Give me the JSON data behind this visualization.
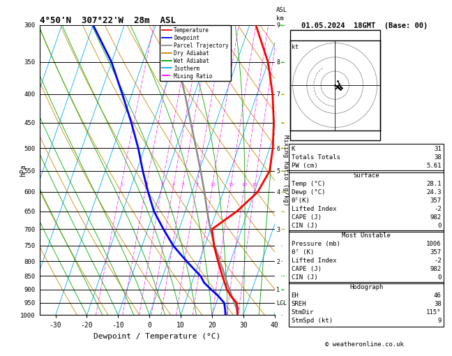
{
  "title_left": "4°50'N  307°22'W  28m  ASL",
  "title_right": "01.05.2024  18GMT  (Base: 00)",
  "xlabel": "Dewpoint / Temperature (°C)",
  "ylabel_left": "hPa",
  "ylabel_right_mr": "Mixing Ratio (g/kg)",
  "copyright": "© weatheronline.co.uk",
  "pressure_levels": [
    300,
    350,
    400,
    450,
    500,
    550,
    600,
    650,
    700,
    750,
    800,
    850,
    900,
    950,
    1000
  ],
  "temp_ticks": [
    -30,
    -20,
    -10,
    0,
    10,
    20,
    30,
    40
  ],
  "tmin": -35,
  "tmax": 40,
  "pmin": 300,
  "pmax": 1000,
  "skew_factor": 32,
  "isotherm_color": "#00aaff",
  "dry_adiabat_color": "#cc8800",
  "wet_adiabat_color": "#00aa00",
  "mixing_ratio_color": "#ff00ff",
  "temperature_color": "#ff0000",
  "dewpoint_color": "#0000ff",
  "parcel_color": "#888888",
  "legend_items": [
    {
      "label": "Temperature",
      "color": "#ff0000",
      "ls": "-"
    },
    {
      "label": "Dewpoint",
      "color": "#0000ff",
      "ls": "-"
    },
    {
      "label": "Parcel Trajectory",
      "color": "#888888",
      "ls": "-"
    },
    {
      "label": "Dry Adiabat",
      "color": "#cc8800",
      "ls": "-"
    },
    {
      "label": "Wet Adiabat",
      "color": "#00aa00",
      "ls": "-"
    },
    {
      "label": "Isotherm",
      "color": "#00aaff",
      "ls": "-"
    },
    {
      "label": "Mixing Ratio",
      "color": "#ff00ff",
      "ls": "-."
    }
  ],
  "km_labels": {
    "300": "9",
    "350": "8",
    "400": "7",
    "500": "6",
    "550": "5",
    "600": "4",
    "700": "3",
    "800": "2",
    "900": "1",
    "950": "LCL"
  },
  "temp_profile_pressure": [
    1000,
    975,
    950,
    925,
    900,
    875,
    850,
    825,
    800,
    775,
    750,
    700,
    650,
    600,
    550,
    500,
    450,
    400,
    350,
    300
  ],
  "temp_profile_temp": [
    28.1,
    27.5,
    26.5,
    24.0,
    22.0,
    20.5,
    19.0,
    17.5,
    16.0,
    14.5,
    13.0,
    10.5,
    16.5,
    21.0,
    22.5,
    21.0,
    18.5,
    15.0,
    10.0,
    2.0
  ],
  "dewp_profile_pressure": [
    1000,
    975,
    950,
    925,
    900,
    875,
    850,
    825,
    800,
    775,
    750,
    700,
    650,
    600,
    550,
    500,
    450,
    400,
    350,
    300
  ],
  "dewp_profile_temp": [
    24.3,
    23.5,
    22.5,
    20.0,
    17.0,
    14.0,
    12.0,
    9.0,
    6.0,
    3.0,
    0.0,
    -5.0,
    -10.0,
    -14.0,
    -18.0,
    -22.0,
    -27.0,
    -33.0,
    -40.0,
    -50.0
  ],
  "parcel_profile_pressure": [
    1000,
    975,
    950,
    925,
    900,
    875,
    850,
    825,
    800,
    775,
    750,
    700,
    650,
    600,
    550,
    500,
    450,
    400,
    350,
    300
  ],
  "parcel_profile_temp": [
    28.1,
    27.2,
    25.8,
    24.3,
    22.8,
    21.3,
    19.8,
    18.3,
    16.5,
    15.0,
    13.2,
    10.0,
    7.0,
    4.0,
    0.5,
    -3.5,
    -8.0,
    -13.0,
    -19.0,
    -26.0
  ],
  "mixing_ratio_values": [
    1,
    2,
    3,
    4,
    5,
    7,
    10,
    15,
    20,
    25
  ],
  "hodograph_data": {
    "K": 31,
    "TT": 38,
    "PW": "5.61",
    "surf_temp": "28.1",
    "surf_dewp": "24.3",
    "surf_thetae": "357",
    "surf_li": "-2",
    "surf_cape": "982",
    "surf_cin": "0",
    "mu_pressure": "1006",
    "mu_thetae": "357",
    "mu_li": "-2",
    "mu_cape": "982",
    "mu_cin": "0",
    "EH": "46",
    "SREH": "38",
    "StmDir": "115°",
    "StmSpd": "9"
  },
  "wind_barbs": [
    {
      "p": 1000,
      "dir": 110,
      "spd": 4,
      "color": "#00cc00"
    },
    {
      "p": 950,
      "dir": 115,
      "spd": 5,
      "color": "#00cc00"
    },
    {
      "p": 900,
      "dir": 120,
      "spd": 6,
      "color": "#00cc00"
    },
    {
      "p": 850,
      "dir": 100,
      "spd": 5,
      "color": "#00cc00"
    },
    {
      "p": 800,
      "dir": 90,
      "spd": 7,
      "color": "#00cc00"
    },
    {
      "p": 750,
      "dir": 80,
      "spd": 8,
      "color": "#aaaa00"
    },
    {
      "p": 700,
      "dir": 75,
      "spd": 10,
      "color": "#aaaa00"
    },
    {
      "p": 650,
      "dir": 70,
      "spd": 12,
      "color": "#aaaa00"
    },
    {
      "p": 600,
      "dir": 60,
      "spd": 14,
      "color": "#aaaa00"
    },
    {
      "p": 550,
      "dir": 55,
      "spd": 15,
      "color": "#aaaa00"
    },
    {
      "p": 500,
      "dir": 50,
      "spd": 18,
      "color": "#aaaa00"
    },
    {
      "p": 450,
      "dir": 45,
      "spd": 20,
      "color": "#aaaa00"
    },
    {
      "p": 400,
      "dir": 40,
      "spd": 22,
      "color": "#aaaa00"
    },
    {
      "p": 350,
      "dir": 35,
      "spd": 18,
      "color": "#00cc00"
    },
    {
      "p": 300,
      "dir": 30,
      "spd": 15,
      "color": "#00cc00"
    }
  ]
}
